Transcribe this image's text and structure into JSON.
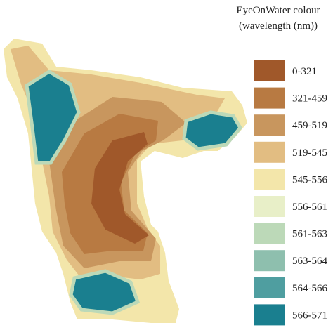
{
  "legend": {
    "title": [
      "EyeOnWater colour",
      "(wavelength (nm))"
    ],
    "items": [
      {
        "label": "0-321",
        "color": "#a0582a"
      },
      {
        "label": "321-459",
        "color": "#b87a42"
      },
      {
        "label": "459-519",
        "color": "#c8965e"
      },
      {
        "label": "519-545",
        "color": "#e2bd82"
      },
      {
        "label": "545-556",
        "color": "#f3e6aa"
      },
      {
        "label": "556-561",
        "color": "#e8efc8"
      },
      {
        "label": "561-563",
        "color": "#bcd9b8"
      },
      {
        "label": "563-564",
        "color": "#8ebfae"
      },
      {
        "label": "564-566",
        "color": "#4f9ea0"
      },
      {
        "label": "566-571",
        "color": "#1a7f8f"
      }
    ]
  }
}
